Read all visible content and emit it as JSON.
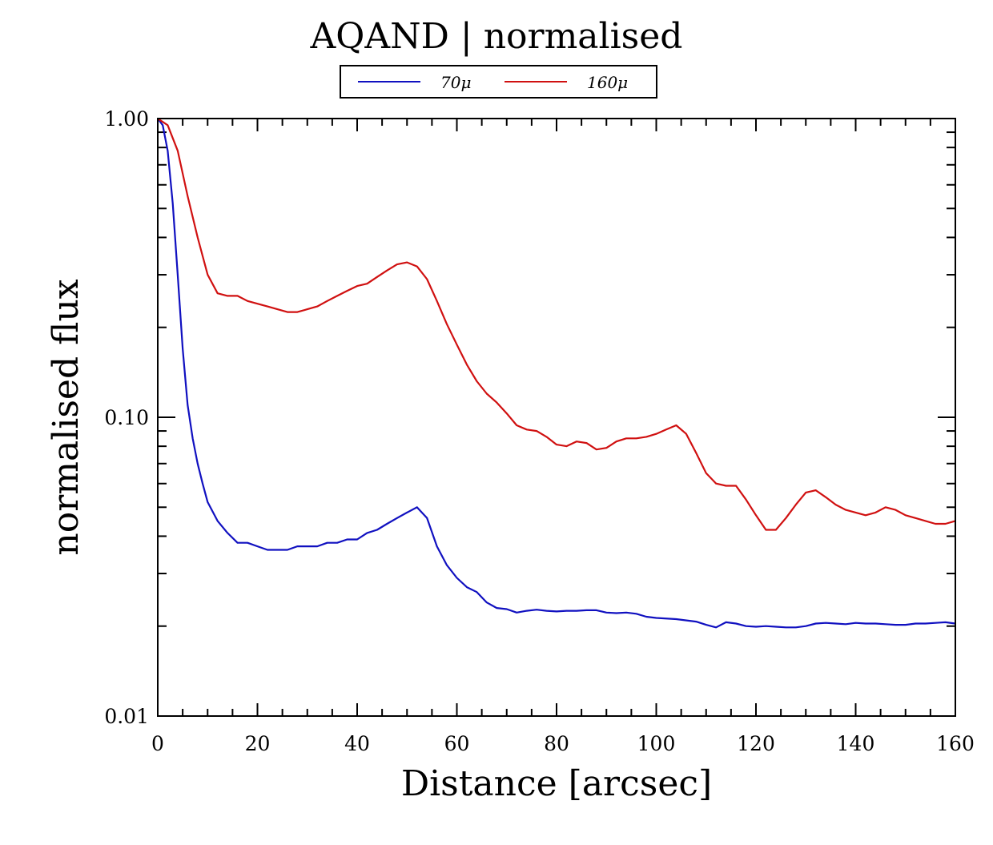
{
  "chart_data": {
    "type": "line",
    "title": "AQAND | normalised",
    "xlabel": "Distance [arcsec]",
    "ylabel": "normalised flux",
    "xlim": [
      0,
      160
    ],
    "ylim": [
      0.01,
      1.0
    ],
    "yscale": "log",
    "x_ticks": [
      0,
      20,
      40,
      60,
      80,
      100,
      120,
      140,
      160
    ],
    "x_tick_labels": [
      "0",
      "20",
      "40",
      "60",
      "80",
      "100",
      "120",
      "140",
      "160"
    ],
    "y_ticks": [
      0.01,
      0.1,
      1.0
    ],
    "y_tick_labels": [
      "0.01",
      "0.10",
      "1.00"
    ],
    "legend_position": "top-center",
    "series": [
      {
        "name": "70μ",
        "color": "#1010c0",
        "x": [
          0,
          1,
          2,
          3,
          4,
          5,
          6,
          7,
          8,
          9,
          10,
          12,
          14,
          16,
          18,
          20,
          22,
          24,
          26,
          28,
          30,
          32,
          34,
          36,
          38,
          40,
          42,
          44,
          46,
          48,
          50,
          52,
          54,
          56,
          58,
          60,
          62,
          64,
          66,
          68,
          70,
          72,
          74,
          76,
          78,
          80,
          82,
          84,
          86,
          88,
          90,
          92,
          94,
          96,
          98,
          100,
          104,
          108,
          110,
          112,
          114,
          116,
          118,
          120,
          122,
          124,
          126,
          128,
          130,
          132,
          134,
          136,
          138,
          140,
          142,
          144,
          146,
          148,
          150,
          152,
          154,
          156,
          158,
          160
        ],
        "values": [
          1.0,
          0.95,
          0.78,
          0.52,
          0.3,
          0.17,
          0.11,
          0.085,
          0.07,
          0.06,
          0.052,
          0.045,
          0.041,
          0.038,
          0.038,
          0.037,
          0.036,
          0.036,
          0.036,
          0.037,
          0.037,
          0.037,
          0.038,
          0.038,
          0.039,
          0.039,
          0.041,
          0.042,
          0.044,
          0.046,
          0.048,
          0.05,
          0.046,
          0.037,
          0.032,
          0.029,
          0.027,
          0.026,
          0.024,
          0.023,
          0.0228,
          0.0222,
          0.0225,
          0.0227,
          0.0225,
          0.0224,
          0.0225,
          0.0225,
          0.0226,
          0.0226,
          0.0222,
          0.0221,
          0.0222,
          0.022,
          0.0215,
          0.0213,
          0.0211,
          0.0207,
          0.0202,
          0.0198,
          0.0206,
          0.0204,
          0.02,
          0.0199,
          0.02,
          0.0199,
          0.0198,
          0.0198,
          0.02,
          0.0204,
          0.0205,
          0.0204,
          0.0203,
          0.0205,
          0.0204,
          0.0204,
          0.0203,
          0.0202,
          0.0202,
          0.0204,
          0.0204,
          0.0205,
          0.0206,
          0.0204
        ]
      },
      {
        "name": "160μ",
        "color": "#d01010",
        "x": [
          0,
          2,
          4,
          6,
          8,
          10,
          12,
          14,
          16,
          18,
          20,
          22,
          24,
          26,
          28,
          30,
          32,
          34,
          36,
          38,
          40,
          42,
          44,
          46,
          48,
          50,
          52,
          54,
          56,
          58,
          60,
          62,
          64,
          66,
          68,
          70,
          72,
          74,
          76,
          78,
          80,
          82,
          84,
          86,
          88,
          90,
          92,
          94,
          96,
          98,
          100,
          102,
          104,
          106,
          108,
          110,
          112,
          114,
          116,
          118,
          120,
          122,
          124,
          126,
          128,
          130,
          132,
          134,
          136,
          138,
          140,
          142,
          144,
          146,
          148,
          150,
          152,
          154,
          156,
          158,
          160
        ],
        "values": [
          1.0,
          0.95,
          0.78,
          0.55,
          0.4,
          0.3,
          0.26,
          0.255,
          0.255,
          0.245,
          0.24,
          0.235,
          0.23,
          0.225,
          0.225,
          0.23,
          0.235,
          0.245,
          0.255,
          0.265,
          0.275,
          0.28,
          0.295,
          0.31,
          0.325,
          0.33,
          0.32,
          0.29,
          0.245,
          0.205,
          0.175,
          0.15,
          0.132,
          0.12,
          0.112,
          0.103,
          0.094,
          0.091,
          0.09,
          0.086,
          0.081,
          0.08,
          0.083,
          0.082,
          0.078,
          0.079,
          0.083,
          0.085,
          0.085,
          0.086,
          0.088,
          0.091,
          0.094,
          0.088,
          0.076,
          0.065,
          0.06,
          0.059,
          0.059,
          0.053,
          0.047,
          0.042,
          0.042,
          0.046,
          0.051,
          0.056,
          0.057,
          0.054,
          0.051,
          0.049,
          0.048,
          0.047,
          0.048,
          0.05,
          0.049,
          0.047,
          0.046,
          0.045,
          0.044,
          0.044,
          0.045
        ]
      }
    ]
  }
}
